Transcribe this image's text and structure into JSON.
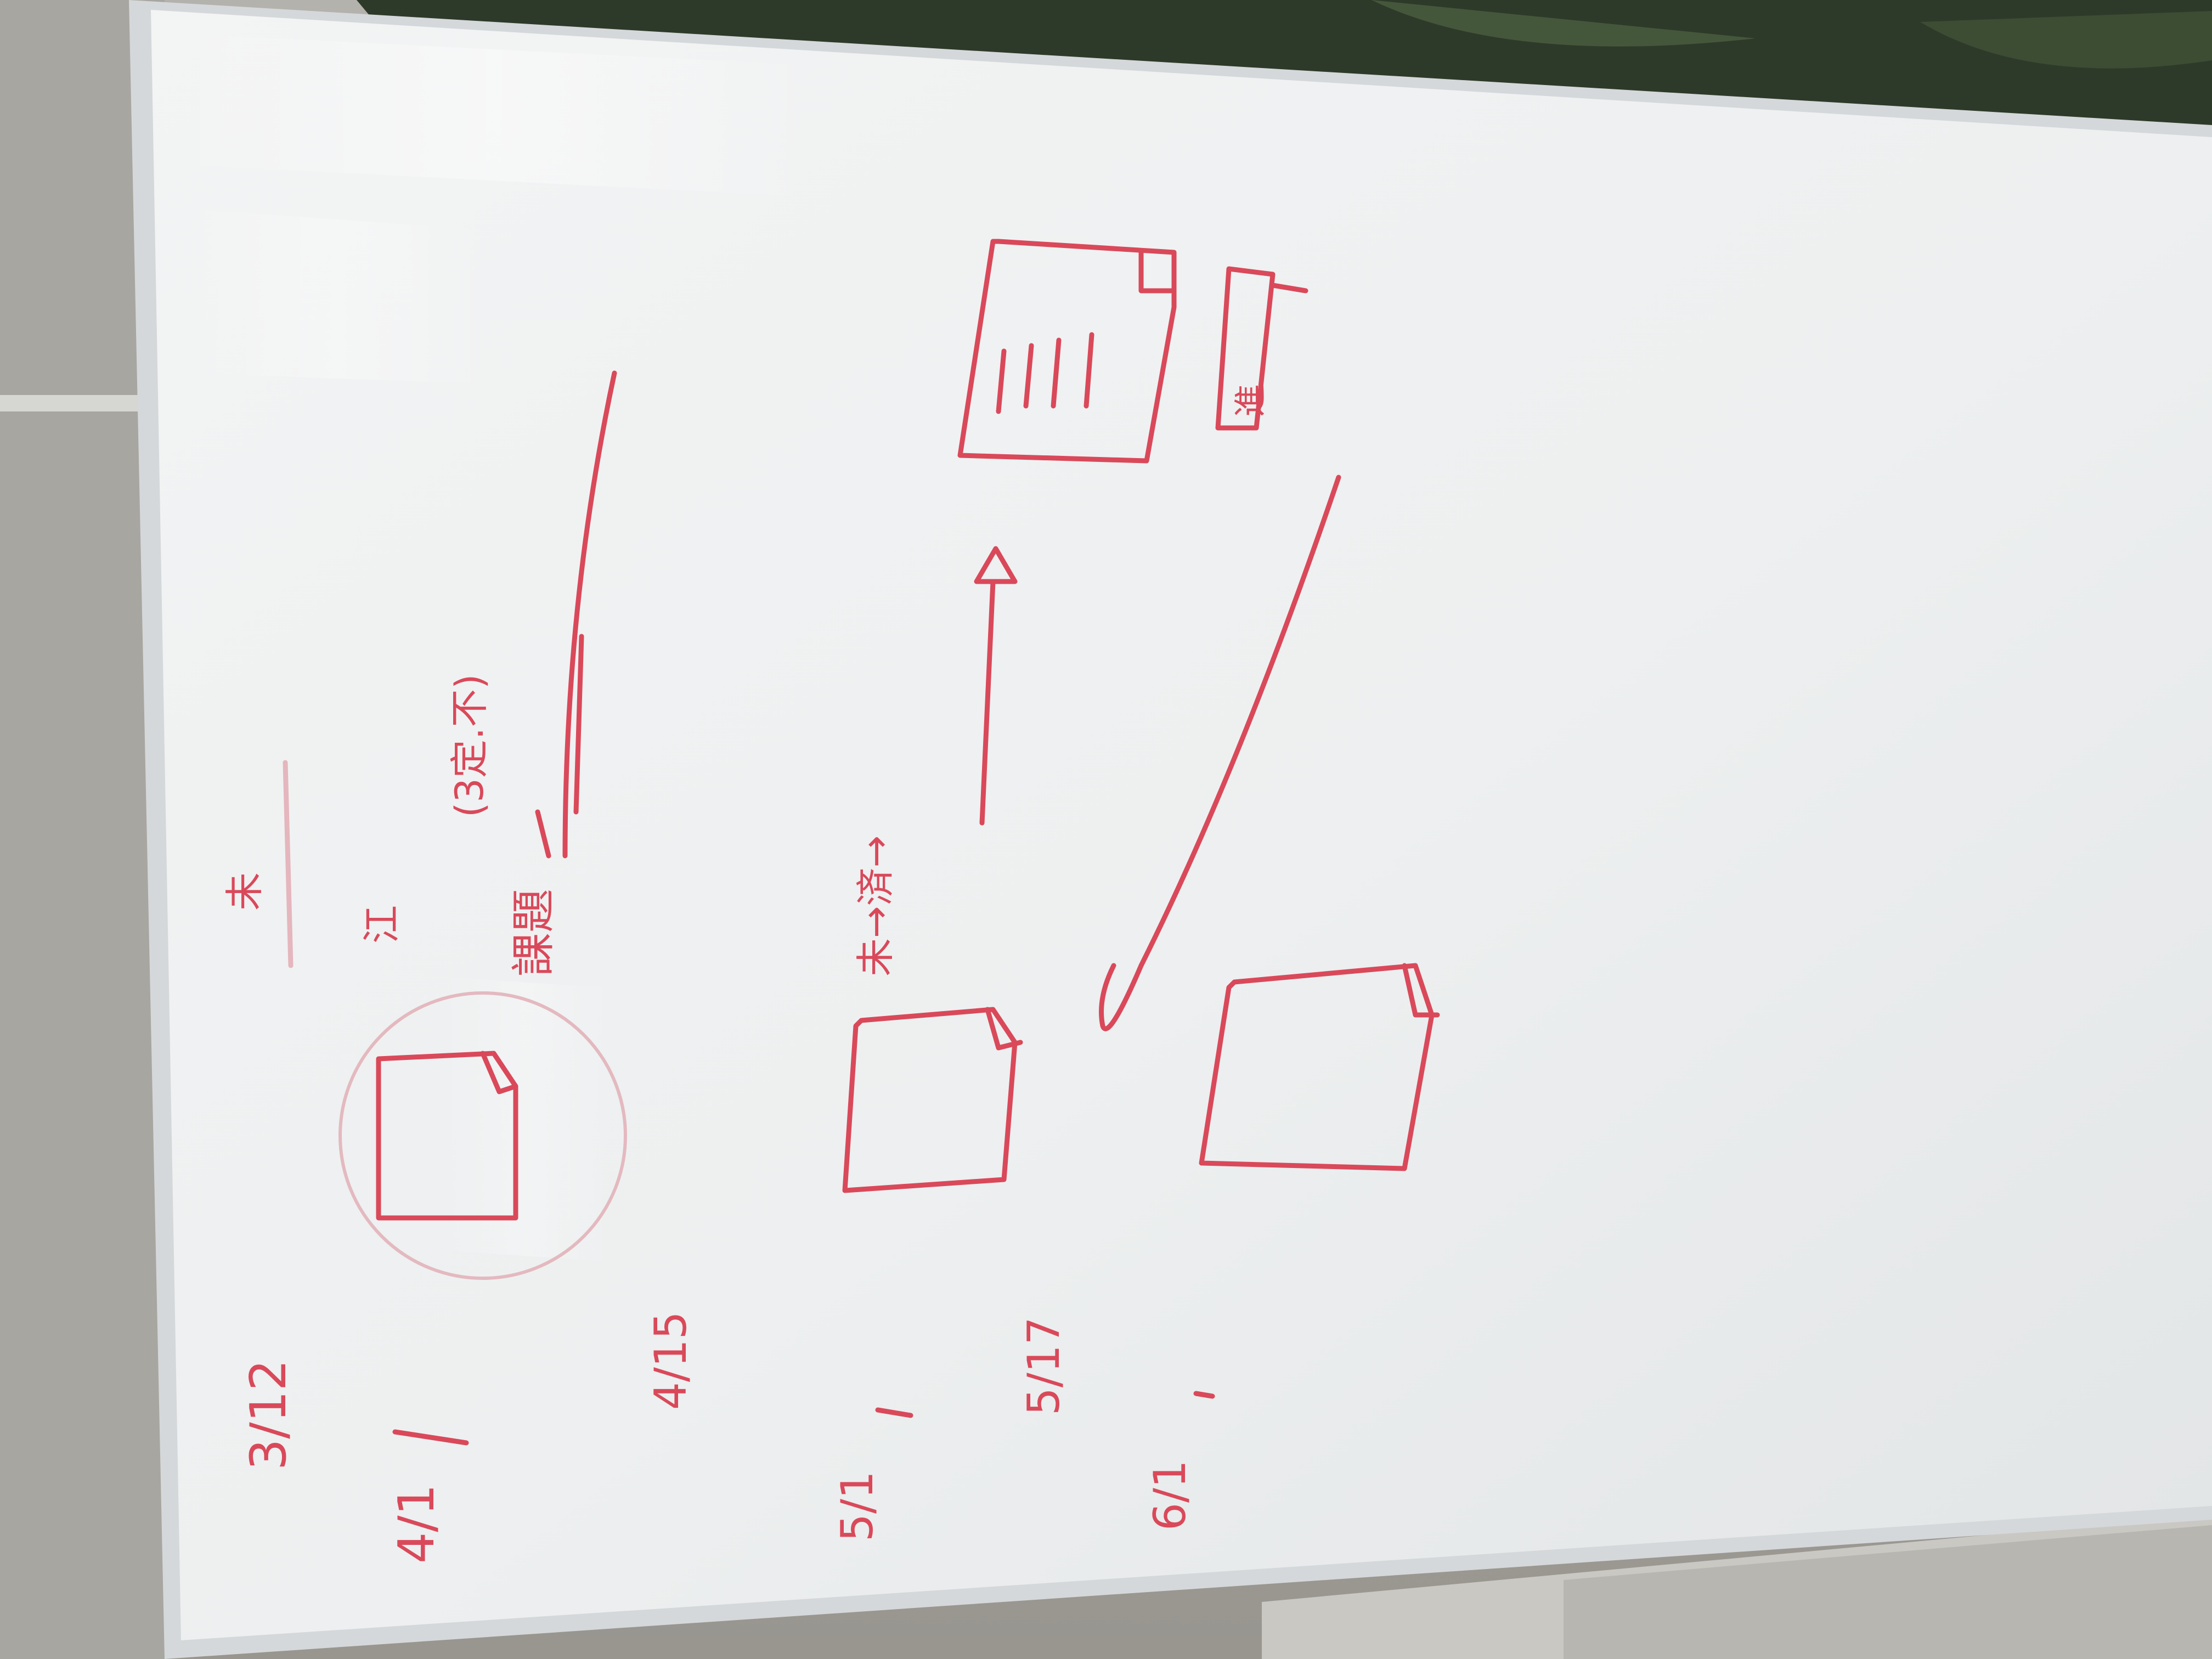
{
  "scene": {
    "subject": "whiteboard-with-red-marker-sketches",
    "ink_color": "#d9495a",
    "board_color": "#eef0f0",
    "frame_color": "#d7d9db",
    "wall_color": "#a7a59f",
    "plant_color": "#2f3b2a"
  },
  "board_text": {
    "note_top_left": "未",
    "note_t2": "江",
    "note_t3": "課題",
    "note_t4": "未→済→",
    "note_rot": "(3定.不)",
    "note_right": "進",
    "date_1": "3/12",
    "date_2": "4/1",
    "date_3": "4/15",
    "date_4": "5/1",
    "date_5": "5/17",
    "date_6": "6/1"
  }
}
